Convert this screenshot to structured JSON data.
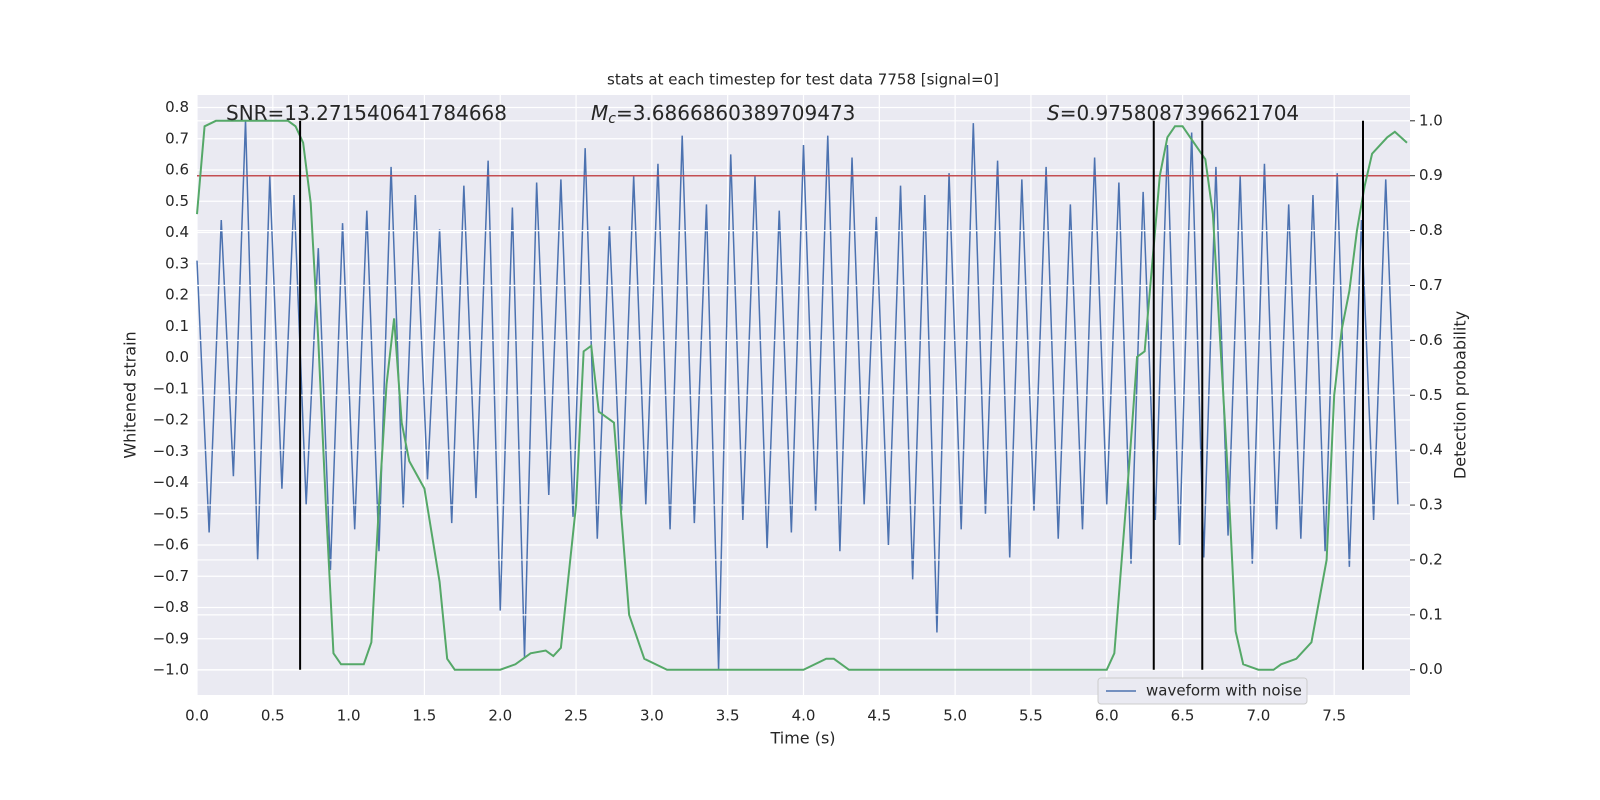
{
  "chart_data": {
    "type": "line",
    "title": "stats at each timestep for test data 7758 [signal=0]",
    "xlabel": "Time (s)",
    "ylabel": "Whitened strain",
    "y2label": "Detection probability",
    "xlim": [
      0,
      8
    ],
    "ylim": [
      -1.08,
      0.84
    ],
    "y2lim": [
      -0.046,
      1.047
    ],
    "xticks": [
      {
        "value": 0,
        "label": "0.0"
      },
      0.5,
      {
        "value": 1,
        "label": "1.0"
      },
      1.5,
      {
        "value": 2,
        "label": "2.0"
      },
      2.5,
      {
        "value": 3,
        "label": "3.0"
      },
      3.5,
      {
        "value": 4,
        "label": "4.0"
      },
      4.5,
      {
        "value": 5,
        "label": "5.0"
      },
      5.5,
      {
        "value": 6,
        "label": "6.0"
      },
      6.5,
      {
        "value": 7,
        "label": "7.0"
      },
      7.5
    ],
    "yticks": [
      0.8,
      0.7,
      0.6,
      0.5,
      0.4,
      0.3,
      0.2,
      0.1,
      {
        "value": 0,
        "label": "0.0"
      },
      {
        "value": -0.1,
        "label": "−0.1"
      },
      {
        "value": -0.2,
        "label": "−0.2"
      },
      {
        "value": -0.3,
        "label": "−0.3"
      },
      {
        "value": -0.4,
        "label": "−0.4"
      },
      {
        "value": -0.5,
        "label": "−0.5"
      },
      {
        "value": -0.6,
        "label": "−0.6"
      },
      {
        "value": -0.7,
        "label": "−0.7"
      },
      {
        "value": -0.8,
        "label": "−0.8"
      },
      {
        "value": -0.9,
        "label": "−0.9"
      },
      {
        "value": -1,
        "label": "−1.0"
      }
    ],
    "y2ticks": [
      {
        "value": 0,
        "label": "0.0"
      },
      0.1,
      0.2,
      0.3,
      0.4,
      0.5,
      0.6,
      0.7,
      0.8,
      0.9,
      {
        "value": 1,
        "label": "1.0"
      }
    ],
    "grid": true,
    "legend": "lower right",
    "annotations": [
      {
        "text": "SNR=13.271540641784668"
      },
      {
        "symbol": "M",
        "subscript": "c",
        "text": "=3.6866860389709473"
      },
      {
        "symbol": "S",
        "text": "=0.9758087396621704"
      }
    ],
    "hlines": [
      {
        "value": 0.9,
        "axis": "y2",
        "color": "#c44e52"
      }
    ],
    "vlines": {
      "x": [
        0.68,
        6.31,
        6.63,
        7.69
      ],
      "ymin": 0,
      "ymax": 1,
      "axis": "y2",
      "color": "#000000"
    },
    "series": [
      {
        "name": "waveform with noise",
        "color": "#4c72b0",
        "x": [
          0,
          0.08,
          0.16,
          0.24,
          0.32,
          0.4,
          0.48,
          0.56,
          0.64,
          0.72,
          0.8,
          0.88,
          0.96,
          1.04,
          1.12,
          1.2,
          1.28,
          1.36,
          1.44,
          1.52,
          1.6,
          1.68,
          1.76,
          1.84,
          1.92,
          2,
          2.08,
          2.16,
          2.24,
          2.32,
          2.4,
          2.48,
          2.56,
          2.64,
          2.72,
          2.8,
          2.88,
          2.96,
          3.04,
          3.12,
          3.2,
          3.28,
          3.36,
          3.44,
          3.52,
          3.6,
          3.68,
          3.76,
          3.84,
          3.92,
          4,
          4.08,
          4.16,
          4.24,
          4.32,
          4.4,
          4.48,
          4.56,
          4.64,
          4.72,
          4.8,
          4.88,
          4.96,
          5.04,
          5.12,
          5.2,
          5.28,
          5.36,
          5.44,
          5.52,
          5.6,
          5.68,
          5.76,
          5.84,
          5.92,
          6,
          6.08,
          6.16,
          6.24,
          6.32,
          6.4,
          6.48,
          6.56,
          6.64,
          6.72,
          6.8,
          6.88,
          6.96,
          7.04,
          7.12,
          7.2,
          7.28,
          7.36,
          7.44,
          7.52,
          7.6,
          7.68,
          7.76,
          7.84,
          7.92
        ],
        "values": [
          0.31,
          -0.56,
          0.44,
          -0.38,
          0.76,
          -0.65,
          0.58,
          -0.42,
          0.52,
          -0.47,
          0.35,
          -0.68,
          0.43,
          -0.55,
          0.47,
          -0.62,
          0.61,
          -0.48,
          0.52,
          -0.39,
          0.41,
          -0.53,
          0.55,
          -0.45,
          0.63,
          -0.81,
          0.48,
          -0.96,
          0.56,
          -0.44,
          0.57,
          -0.51,
          0.67,
          -0.58,
          0.42,
          -0.49,
          0.58,
          -0.47,
          0.62,
          -0.55,
          0.71,
          -0.53,
          0.49,
          -1.0,
          0.65,
          -0.52,
          0.58,
          -0.61,
          0.47,
          -0.56,
          0.68,
          -0.49,
          0.71,
          -0.62,
          0.64,
          -0.47,
          0.45,
          -0.6,
          0.55,
          -0.71,
          0.52,
          -0.88,
          0.59,
          -0.55,
          0.75,
          -0.5,
          0.63,
          -0.64,
          0.57,
          -0.49,
          0.61,
          -0.58,
          0.49,
          -0.55,
          0.64,
          -0.47,
          0.56,
          -0.66,
          0.53,
          -0.52,
          0.68,
          -0.6,
          0.72,
          -0.64,
          0.61,
          -0.57,
          0.58,
          -0.66,
          0.62,
          -0.55,
          0.49,
          -0.58,
          0.52,
          -0.62,
          0.59,
          -0.67,
          0.44,
          -0.52,
          0.57,
          -0.47
        ]
      },
      {
        "color": "#55a868",
        "axis": "y2",
        "x": [
          0,
          0.05,
          0.125,
          0.6,
          0.65,
          0.7,
          0.75,
          0.8,
          0.85,
          0.9,
          0.95,
          1.1,
          1.15,
          1.2,
          1.25,
          1.3,
          1.35,
          1.4,
          1.5,
          1.6,
          1.65,
          1.7,
          2,
          2.1,
          2.2,
          2.3,
          2.35,
          2.4,
          2.5,
          2.55,
          2.6,
          2.65,
          2.75,
          2.85,
          2.95,
          3.1,
          3.5,
          4,
          4.15,
          4.2,
          4.3,
          5,
          6,
          6.05,
          6.15,
          6.2,
          6.25,
          6.35,
          6.4,
          6.45,
          6.5,
          6.55,
          6.65,
          6.7,
          6.8,
          6.85,
          6.9,
          7,
          7.1,
          7.15,
          7.25,
          7.35,
          7.45,
          7.5,
          7.55,
          7.6,
          7.65,
          7.7,
          7.75,
          7.85,
          7.9,
          7.98
        ],
        "values": [
          0.83,
          0.99,
          1.0,
          1.0,
          0.99,
          0.96,
          0.85,
          0.6,
          0.3,
          0.03,
          0.01,
          0.01,
          0.05,
          0.3,
          0.52,
          0.64,
          0.45,
          0.38,
          0.33,
          0.16,
          0.02,
          0.0,
          0.0,
          0.01,
          0.03,
          0.035,
          0.025,
          0.04,
          0.3,
          0.58,
          0.59,
          0.47,
          0.45,
          0.1,
          0.02,
          0.0,
          0.0,
          0.0,
          0.02,
          0.02,
          0.0,
          0.0,
          0.0,
          0.03,
          0.38,
          0.57,
          0.58,
          0.9,
          0.97,
          0.99,
          0.99,
          0.97,
          0.93,
          0.83,
          0.35,
          0.07,
          0.01,
          0.0,
          0.0,
          0.01,
          0.02,
          0.05,
          0.2,
          0.5,
          0.62,
          0.69,
          0.8,
          0.88,
          0.94,
          0.97,
          0.98,
          0.96
        ]
      }
    ]
  }
}
